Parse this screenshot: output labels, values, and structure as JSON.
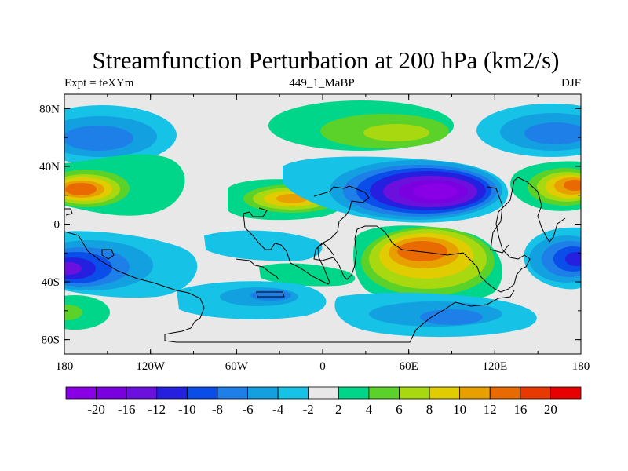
{
  "header": {
    "title": "Streamfunction Perturbation at 200 hPa (km2/s)",
    "left": "Expt = teXYm",
    "center": "449_1_MaBP",
    "right": "DJF"
  },
  "axes": {
    "lat_ticks": [
      {
        "label": "80N",
        "lat": 80
      },
      {
        "label": "40N",
        "lat": 40
      },
      {
        "label": "0",
        "lat": 0
      },
      {
        "label": "40S",
        "lat": -40
      },
      {
        "label": "80S",
        "lat": -80
      }
    ],
    "lon_ticks": [
      {
        "label": "180",
        "lon": -180
      },
      {
        "label": "120W",
        "lon": -120
      },
      {
        "label": "60W",
        "lon": -60
      },
      {
        "label": "0",
        "lon": 0
      },
      {
        "label": "60E",
        "lon": 60
      },
      {
        "label": "120E",
        "lon": 120
      },
      {
        "label": "180",
        "lon": 180
      }
    ],
    "lat_range": [
      -90,
      90
    ],
    "lon_range": [
      -180,
      180
    ]
  },
  "colorbar": {
    "colors": [
      "#8a00e6",
      "#7a00e0",
      "#6c10dd",
      "#2520e0",
      "#0a4de8",
      "#1e7fe8",
      "#13a0e0",
      "#16c3e6",
      "#e8e8e8",
      "#00d68a",
      "#5ad22a",
      "#a8d810",
      "#e0cc00",
      "#e8a000",
      "#e86a00",
      "#e83a00",
      "#e80000"
    ],
    "labels": [
      "-20",
      "-16",
      "-12",
      "-10",
      "-8",
      "-6",
      "-4",
      "-2",
      "2",
      "4",
      "6",
      "8",
      "10",
      "12",
      "16",
      "20"
    ]
  },
  "map_data": {
    "units": "km2/s",
    "features": [
      {
        "name": "north-pacific-low",
        "lon": -150,
        "lat": 60,
        "peak": -8
      },
      {
        "name": "north-atlantic-asia-high",
        "lon": 55,
        "lat": 63,
        "peak": 8
      },
      {
        "name": "arctic-north-pacific-low-east",
        "lon": 165,
        "lat": 60,
        "peak": -8
      },
      {
        "name": "north-pacific-high-west",
        "lon": -162,
        "lat": 25,
        "peak": 16
      },
      {
        "name": "north-pacific-high-east",
        "lon": 172,
        "lat": 25,
        "peak": 16
      },
      {
        "name": "central-america-high",
        "lon": -22,
        "lat": 20,
        "peak": 12
      },
      {
        "name": "asia-low",
        "lon": 85,
        "lat": 28,
        "peak": -20
      },
      {
        "name": "south-pacific-low-west",
        "lon": -168,
        "lat": -30,
        "peak": -16
      },
      {
        "name": "south-pacific-low-east",
        "lon": 170,
        "lat": -25,
        "peak": -12
      },
      {
        "name": "indian-ocean-high",
        "lon": 68,
        "lat": -18,
        "peak": 16
      },
      {
        "name": "south-atlantic-low",
        "lon": -40,
        "lat": -30,
        "peak": -6
      },
      {
        "name": "southern-ocean-low",
        "lon": 75,
        "lat": -62,
        "peak": -6
      },
      {
        "name": "south-pacific-high",
        "lon": -172,
        "lat": -62,
        "peak": 4
      }
    ]
  }
}
